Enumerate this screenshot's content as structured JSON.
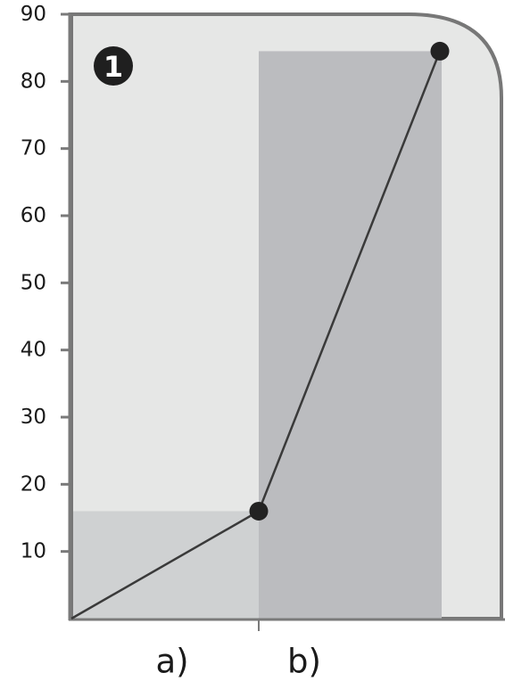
{
  "colors": {
    "panel_fill": "#e6e7e6",
    "panel_stroke": "#777777",
    "bar_a": "#cfd1d2",
    "bar_b": "#bbbcbf",
    "line": "#3a3a3a",
    "point": "#222222",
    "axis": "#7a7a7a",
    "badge": "#1f1f1f"
  },
  "badge_label": "1",
  "chart_data": {
    "type": "bar",
    "overlay": "line",
    "categories": [
      "a)",
      "b)"
    ],
    "values": [
      16,
      84.5
    ],
    "line_points": [
      {
        "x": 0,
        "y": 0
      },
      {
        "x": 1,
        "y": 16
      },
      {
        "x": 2,
        "y": 84.5
      }
    ],
    "yticks": [
      10,
      20,
      30,
      40,
      50,
      60,
      70,
      80,
      90
    ],
    "ylim": [
      0,
      90
    ],
    "title": "",
    "xlabel": "",
    "ylabel": "",
    "grid": false,
    "legend": "none"
  }
}
